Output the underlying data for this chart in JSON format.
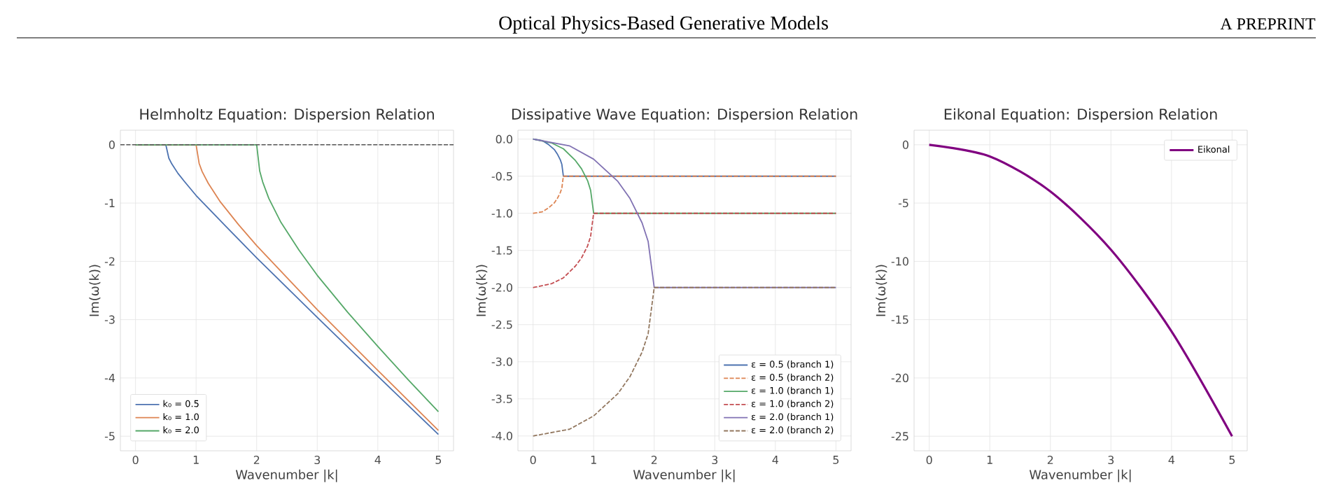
{
  "chart_data": [
    {
      "type": "line",
      "title": "Helmholtz Equation: Dispersion Relation",
      "xlabel": "Wavenumber |k|",
      "ylabel": "Im(ω(k))",
      "annotations": [
        "Optical Physics-Based Generative Models",
        "A PREPRINT"
      ],
      "xlim": [
        -0.25,
        5.25
      ],
      "ylim": [
        -5.25,
        0.25
      ],
      "xticks": [
        0,
        1,
        2,
        3,
        4,
        5
      ],
      "yticks": [
        -5,
        -4,
        -3,
        -2,
        -1,
        0
      ],
      "grid": true,
      "legend": "bottom left",
      "series": [
        {
          "name": "k₀ = 0.5",
          "color": "#4c72b0",
          "x": [
            0,
            0.5,
            0.55,
            0.6,
            0.7,
            0.8,
            1,
            1.5,
            2,
            3,
            4,
            5
          ],
          "values": [
            0,
            0,
            -0.23,
            -0.33,
            -0.49,
            -0.62,
            -0.87,
            -1.41,
            -1.94,
            -2.96,
            -3.97,
            -4.97
          ]
        },
        {
          "name": "k₀ = 1.0",
          "color": "#dd8452",
          "x": [
            0,
            1,
            1.05,
            1.1,
            1.2,
            1.4,
            1.7,
            2,
            3,
            4,
            5
          ],
          "values": [
            0,
            0,
            -0.32,
            -0.46,
            -0.66,
            -0.98,
            -1.37,
            -1.73,
            -2.83,
            -3.87,
            -4.9
          ]
        },
        {
          "name": "k₀ = 2.0",
          "color": "#55a868",
          "x": [
            0,
            2,
            2.05,
            2.1,
            2.2,
            2.4,
            2.7,
            3,
            3.5,
            4,
            4.5,
            5
          ],
          "values": [
            0,
            0,
            -0.45,
            -0.64,
            -0.92,
            -1.33,
            -1.81,
            -2.24,
            -2.87,
            -3.46,
            -4.03,
            -4.58
          ]
        }
      ],
      "ref_lines": [
        {
          "axis": "y",
          "value": 0,
          "color": "#555555",
          "line_style": "dashed"
        }
      ]
    },
    {
      "type": "line",
      "title": "Dissipative Wave Equation: Dispersion Relation",
      "xlabel": "Wavenumber |k|",
      "ylabel": "Im(ω(k))",
      "xlim": [
        -0.25,
        5.25
      ],
      "ylim": [
        -4.2,
        0.12
      ],
      "xticks": [
        0,
        1,
        2,
        3,
        4,
        5
      ],
      "yticks": [
        {
          "value": -4,
          "label": "-4.0"
        },
        {
          "value": -3.5,
          "label": "-3.5"
        },
        {
          "value": -3,
          "label": "-3.0"
        },
        {
          "value": -2.5,
          "label": "-2.5"
        },
        {
          "value": -2,
          "label": "-2.0"
        },
        {
          "value": -1.5,
          "label": "-1.5"
        },
        {
          "value": -1,
          "label": "-1.0"
        },
        {
          "value": -0.5,
          "label": "-0.5"
        },
        {
          "value": 0,
          "label": "0.0"
        }
      ],
      "grid": true,
      "legend": "bottom right",
      "series": [
        {
          "name": "ε = 0.5 (branch 1)",
          "color": "#4c72b0",
          "line_style": "solid",
          "x": [
            0,
            0.15,
            0.25,
            0.35,
            0.4,
            0.45,
            0.475,
            0.5,
            5
          ],
          "values": [
            0,
            -0.02,
            -0.07,
            -0.14,
            -0.2,
            -0.28,
            -0.34,
            -0.5,
            -0.5
          ]
        },
        {
          "name": "ε = 0.5 (branch 2)",
          "color": "#dd8452",
          "line_style": "dashed",
          "x": [
            0,
            0.15,
            0.25,
            0.35,
            0.4,
            0.45,
            0.475,
            0.5,
            5
          ],
          "values": [
            -1,
            -0.98,
            -0.93,
            -0.86,
            -0.8,
            -0.72,
            -0.66,
            -0.5,
            -0.5
          ]
        },
        {
          "name": "ε = 1.0 (branch 1)",
          "color": "#55a868",
          "line_style": "solid",
          "x": [
            0,
            0.3,
            0.5,
            0.7,
            0.8,
            0.9,
            0.95,
            1,
            5
          ],
          "values": [
            0,
            -0.05,
            -0.13,
            -0.29,
            -0.4,
            -0.56,
            -0.69,
            -1,
            -1
          ]
        },
        {
          "name": "ε = 1.0 (branch 2)",
          "color": "#c44e52",
          "line_style": "dashed",
          "x": [
            0,
            0.3,
            0.5,
            0.7,
            0.8,
            0.9,
            0.95,
            1,
            5
          ],
          "values": [
            -2,
            -1.95,
            -1.87,
            -1.71,
            -1.6,
            -1.44,
            -1.31,
            -1,
            -1
          ]
        },
        {
          "name": "ε = 2.0 (branch 1)",
          "color": "#8172b3",
          "line_style": "solid",
          "x": [
            0,
            0.6,
            1,
            1.4,
            1.6,
            1.8,
            1.9,
            2,
            5
          ],
          "values": [
            0,
            -0.09,
            -0.27,
            -0.57,
            -0.8,
            -1.13,
            -1.38,
            -2,
            -2
          ]
        },
        {
          "name": "ε = 2.0 (branch 2)",
          "color": "#937860",
          "line_style": "dashed",
          "x": [
            0,
            0.6,
            1,
            1.4,
            1.6,
            1.8,
            1.9,
            2,
            5
          ],
          "values": [
            -4,
            -3.91,
            -3.73,
            -3.43,
            -3.2,
            -2.87,
            -2.62,
            -2,
            -2
          ]
        }
      ]
    },
    {
      "type": "line",
      "title": "Eikonal Equation: Dispersion Relation",
      "xlabel": "Wavenumber |k|",
      "ylabel": "Im(ω(k))",
      "xlim": [
        -0.25,
        5.25
      ],
      "ylim": [
        -26.25,
        1.25
      ],
      "xticks": [
        0,
        1,
        2,
        3,
        4,
        5
      ],
      "yticks": [
        -25,
        -20,
        -15,
        -10,
        -5,
        0
      ],
      "grid": true,
      "legend": "top right",
      "series": [
        {
          "name": "Eikonal",
          "color": "#800080",
          "x": [
            0,
            1,
            2,
            3,
            4,
            5
          ],
          "values": [
            0,
            -1,
            -4,
            -9,
            -16,
            -25
          ]
        }
      ]
    }
  ]
}
